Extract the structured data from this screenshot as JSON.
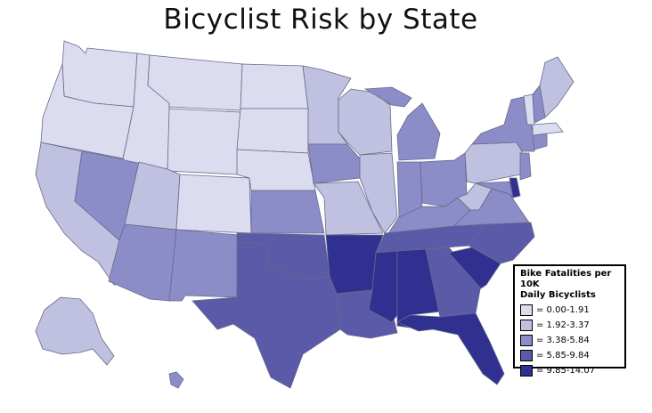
{
  "title": "Bicyclist Risk by State",
  "legend": {
    "title_line1": "Bike Fatalities per 10K",
    "title_line2": "Daily Bicyclists",
    "items": [
      {
        "label": "= 0.00-1.91",
        "color": "#dcdcf0"
      },
      {
        "label": "= 1.92-3.37",
        "color": "#c0c0e0"
      },
      {
        "label": "= 3.38-5.84",
        "color": "#8c8cc8"
      },
      {
        "label": "= 5.85-9.84",
        "color": "#5a5aa8"
      },
      {
        "label": "= 9.85-14.07",
        "color": "#303090"
      }
    ]
  },
  "states": [
    {
      "name": "WA",
      "tier": 0
    },
    {
      "name": "OR",
      "tier": 0
    },
    {
      "name": "ID",
      "tier": 0
    },
    {
      "name": "MT",
      "tier": 0
    },
    {
      "name": "WY",
      "tier": 0
    },
    {
      "name": "ND",
      "tier": 0
    },
    {
      "name": "SD",
      "tier": 0
    },
    {
      "name": "NE",
      "tier": 0
    },
    {
      "name": "CO",
      "tier": 0
    },
    {
      "name": "VT",
      "tier": 0
    },
    {
      "name": "MA",
      "tier": 0
    },
    {
      "name": "CA",
      "tier": 1
    },
    {
      "name": "UT",
      "tier": 1
    },
    {
      "name": "MN",
      "tier": 1
    },
    {
      "name": "WI",
      "tier": 1
    },
    {
      "name": "IL",
      "tier": 1
    },
    {
      "name": "MO",
      "tier": 1
    },
    {
      "name": "PA",
      "tier": 1
    },
    {
      "name": "WV",
      "tier": 1
    },
    {
      "name": "ME",
      "tier": 1
    },
    {
      "name": "AK",
      "tier": 1
    },
    {
      "name": "NV",
      "tier": 2
    },
    {
      "name": "AZ",
      "tier": 2
    },
    {
      "name": "NM",
      "tier": 2
    },
    {
      "name": "KS",
      "tier": 2
    },
    {
      "name": "IA",
      "tier": 2
    },
    {
      "name": "MI",
      "tier": 2
    },
    {
      "name": "IN",
      "tier": 2
    },
    {
      "name": "OH",
      "tier": 2
    },
    {
      "name": "KY",
      "tier": 2
    },
    {
      "name": "VA",
      "tier": 2
    },
    {
      "name": "NY",
      "tier": 2
    },
    {
      "name": "NH",
      "tier": 2
    },
    {
      "name": "CT",
      "tier": 2
    },
    {
      "name": "NJ",
      "tier": 2
    },
    {
      "name": "MD",
      "tier": 2
    },
    {
      "name": "HI",
      "tier": 2
    },
    {
      "name": "TX",
      "tier": 3
    },
    {
      "name": "OK",
      "tier": 3
    },
    {
      "name": "AR",
      "tier": 4
    },
    {
      "name": "LA",
      "tier": 3
    },
    {
      "name": "TN",
      "tier": 3
    },
    {
      "name": "GA",
      "tier": 3
    },
    {
      "name": "NC",
      "tier": 3
    },
    {
      "name": "DE",
      "tier": 4
    },
    {
      "name": "MS",
      "tier": 4
    },
    {
      "name": "AL",
      "tier": 4
    },
    {
      "name": "SC",
      "tier": 4
    },
    {
      "name": "FL",
      "tier": 4
    }
  ]
}
